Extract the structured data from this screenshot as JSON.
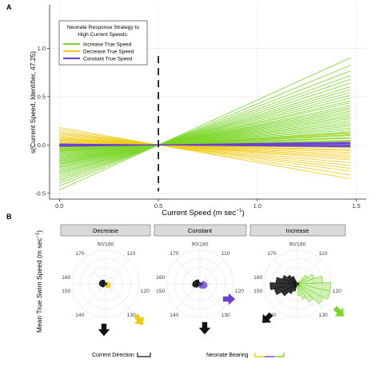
{
  "colors": {
    "increase": "#7bd629",
    "decrease": "#f0cb16",
    "constant": "#6a3fd1",
    "current": "#111111",
    "facet_strip": "#d9d9d9",
    "grid": "#ececec"
  },
  "panel_a": {
    "tag": "A",
    "ylabel": "s(Current Speed, Identifier, 47.25)",
    "xlabel_main": "Current Speed (m sec",
    "xlabel_sup": "−1",
    "xlabel_close": ")",
    "x_ticks": [
      "0.0",
      "0.5",
      "1.0",
      "1.5"
    ],
    "y_ticks": [
      "-0.5",
      "0.0",
      "0.5",
      "1.0"
    ],
    "legend_title_line1": "Neonate Response Strategy to",
    "legend_title_line2": "High Current Speeds:",
    "legend_items": [
      "Increase True Speed",
      "Decrease True Speed",
      "Constant True Speed"
    ]
  },
  "panel_b": {
    "tag": "B",
    "ylabel_main": "Mean True Swim Speed (m sec",
    "ylabel_sup": "−1",
    "ylabel_close": ")",
    "facets": [
      "Decrease",
      "Constant",
      "Increase"
    ],
    "bearing_labels": [
      "90/180",
      "170",
      "110",
      "160",
      "120",
      "150",
      "130",
      "140"
    ],
    "legend_current": "Current Direction",
    "legend_bearing": "Neonate  Bearing"
  },
  "chart_data": [
    {
      "type": "line",
      "title": "",
      "xlabel": "Current Speed (m sec−1)",
      "ylabel": "s(Current Speed, Identifier, 47.25)",
      "xlim": [
        -0.05,
        1.55
      ],
      "ylim": [
        -0.56,
        1.45
      ],
      "vline_x": 0.5,
      "series_groups": [
        {
          "name": "Increase True Speed",
          "slopes": [
            0.93,
            0.85,
            0.79,
            0.74,
            0.7,
            0.66,
            0.62,
            0.59,
            0.56,
            0.53,
            0.5,
            0.47,
            0.45,
            0.42,
            0.4,
            0.38,
            0.36,
            0.34,
            0.32,
            0.3,
            0.28,
            0.26,
            0.24,
            0.22,
            0.2,
            0.18,
            0.16,
            0.14,
            0.13,
            0.11,
            0.1,
            0.08,
            0.07,
            0.05,
            0.04,
            0.03
          ]
        },
        {
          "name": "Decrease True Speed",
          "slopes": [
            -0.36,
            -0.32,
            -0.28,
            -0.25,
            -0.22,
            -0.19,
            -0.16,
            -0.14,
            -0.12,
            -0.1,
            -0.08,
            -0.06,
            -0.05,
            -0.03,
            0.12,
            0.08,
            0.05
          ]
        },
        {
          "name": "Constant True Speed",
          "slopes": [
            0.03,
            0.02,
            0.01,
            0.0,
            -0.01,
            -0.02,
            0.015,
            -0.015
          ]
        }
      ],
      "x_range": [
        0.0,
        1.47
      ],
      "pivot_x": 0.5
    },
    {
      "type": "rose",
      "title": "",
      "ylabel": "Mean True Swim Speed (m sec−1)",
      "bearing_ticks": [
        90,
        110,
        120,
        130,
        140,
        150,
        160,
        170
      ],
      "facets": [
        {
          "name": "Decrease",
          "current_bearing": 140,
          "neonate_bearing": 125,
          "current_bins": [
            0.1,
            0.12,
            0.14,
            0.16,
            0.17,
            0.16,
            0.15,
            0.13,
            0.11
          ],
          "neonate_bins": [
            0.08,
            0.1,
            0.12,
            0.14,
            0.15,
            0.14,
            0.12,
            0.1,
            0.08
          ]
        },
        {
          "name": "Constant",
          "current_bearing": 140,
          "neonate_bearing": 115,
          "current_bins": [
            0.1,
            0.14,
            0.18,
            0.2,
            0.19,
            0.17,
            0.15,
            0.13,
            0.12
          ],
          "neonate_bins": [
            0.12,
            0.15,
            0.18,
            0.2,
            0.19,
            0.16,
            0.14,
            0.12,
            0.1
          ]
        },
        {
          "name": "Increase",
          "current_bearing": 140,
          "neonate_bearing": 120,
          "current_bins": [
            0.2,
            0.3,
            0.45,
            0.6,
            0.7,
            0.55,
            0.4,
            0.3,
            0.22
          ],
          "neonate_bins": [
            0.3,
            0.45,
            0.65,
            0.85,
            0.9,
            0.75,
            0.55,
            0.4,
            0.3
          ]
        }
      ]
    }
  ]
}
